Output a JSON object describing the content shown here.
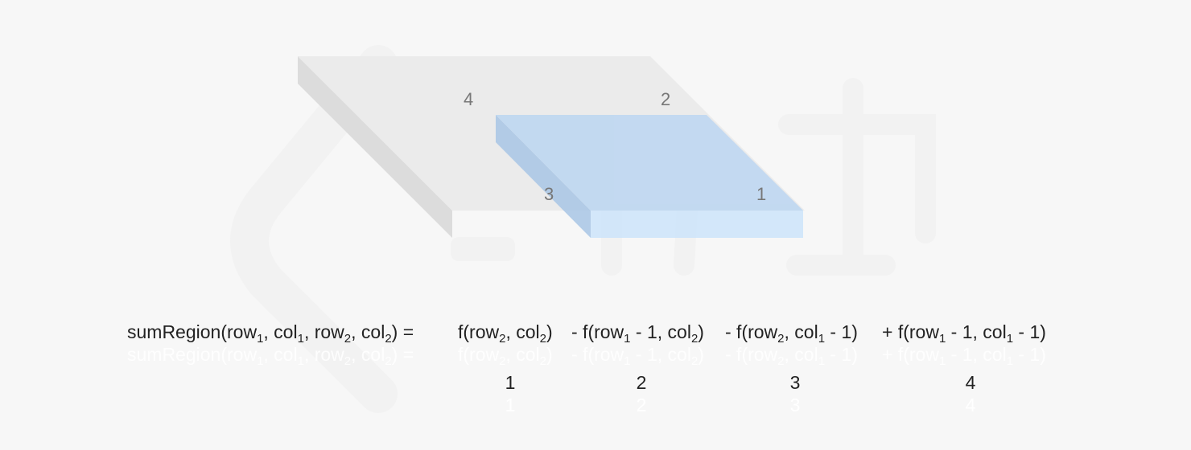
{
  "corner_labels": {
    "top_left": "4",
    "top_right": "2",
    "bottom_left": "3",
    "bottom_right": "1"
  },
  "formula": {
    "lhs": {
      "pre": "sumRegion(row",
      "s1": "1",
      "mid1": ", col",
      "s2": "1",
      "mid2": ", row",
      "s3": "2",
      "mid3": ", col",
      "s4": "2",
      "post": ") ="
    },
    "t1": {
      "pre": "f(row",
      "s1": "2",
      "mid": ", col",
      "s2": "2",
      "post": ")"
    },
    "t2": {
      "pre": "- f(row",
      "s1": "1",
      "mid": " - 1, col",
      "s2": "2",
      "post": ")"
    },
    "t3": {
      "pre": "- f(row",
      "s1": "2",
      "mid": ", col",
      "s2": "1",
      "post": " - 1)"
    },
    "t4": {
      "pre": "+ f(row",
      "s1": "1",
      "mid": " - 1, col",
      "s2": "1",
      "post": " - 1)"
    }
  },
  "term_indices": [
    "1",
    "2",
    "3",
    "4"
  ],
  "colors": {
    "background": "#f7f7f7",
    "gray_top": "#ebebeb",
    "gray_side": "#dcdcdc",
    "blue_top": "#c6dbf2",
    "blue_side": "#a9c6e6",
    "blue_front": "#cde5fb"
  }
}
